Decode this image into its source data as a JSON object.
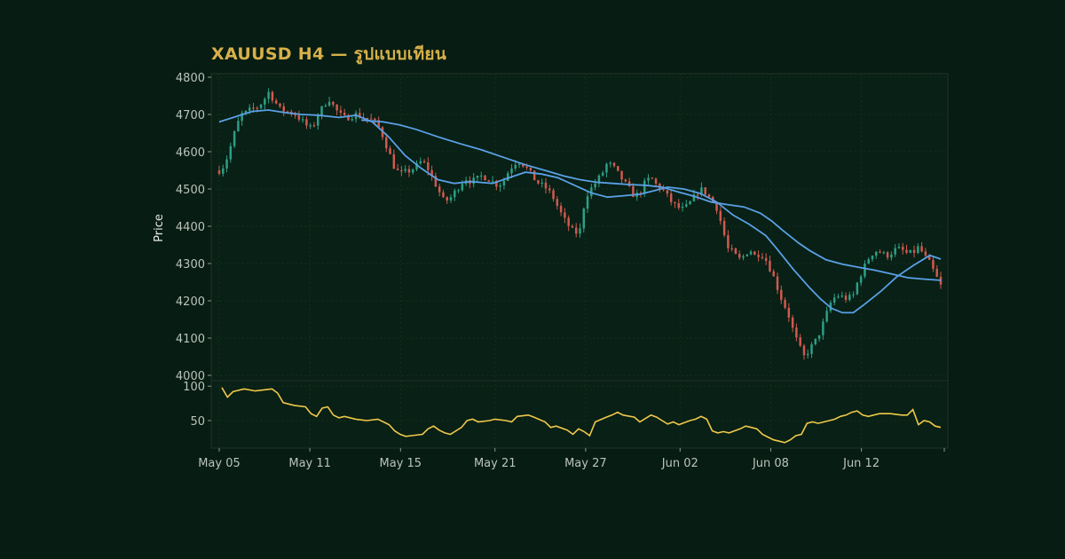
{
  "chart_data": {
    "type": "candlestick",
    "title": "XAUUSD H4 — รูปแบบเทียน",
    "ylabel": "Price",
    "ylim": [
      4000,
      4800
    ],
    "yticks": [
      4000,
      4100,
      4200,
      4300,
      4400,
      4500,
      4600,
      4700,
      4800
    ],
    "xticks": [
      "May 05",
      "May 11",
      "May 15",
      "May 21",
      "May 27",
      "Jun 02",
      "Jun 08",
      "Jun 12"
    ],
    "grid": true,
    "close_path": [
      [
        0,
        4550
      ],
      [
        1,
        4565
      ],
      [
        2,
        4610
      ],
      [
        3,
        4660
      ],
      [
        4,
        4700
      ],
      [
        5,
        4705
      ],
      [
        6,
        4715
      ],
      [
        7,
        4720
      ],
      [
        8,
        4735
      ],
      [
        9,
        4760
      ],
      [
        10,
        4740
      ],
      [
        11,
        4715
      ],
      [
        12,
        4710
      ],
      [
        13,
        4705
      ],
      [
        14,
        4700
      ],
      [
        15,
        4685
      ],
      [
        16,
        4670
      ],
      [
        17,
        4660
      ],
      [
        18,
        4700
      ],
      [
        19,
        4720
      ],
      [
        20,
        4745
      ],
      [
        21,
        4720
      ],
      [
        22,
        4700
      ],
      [
        23,
        4690
      ],
      [
        24,
        4695
      ],
      [
        25,
        4700
      ],
      [
        26,
        4695
      ],
      [
        27,
        4690
      ],
      [
        28,
        4685
      ],
      [
        29,
        4670
      ],
      [
        30,
        4640
      ],
      [
        31,
        4600
      ],
      [
        32,
        4560
      ],
      [
        33,
        4540
      ],
      [
        34,
        4545
      ],
      [
        35,
        4550
      ],
      [
        36,
        4560
      ],
      [
        37,
        4575
      ],
      [
        38,
        4560
      ],
      [
        39,
        4530
      ],
      [
        40,
        4500
      ],
      [
        41,
        4470
      ],
      [
        42,
        4470
      ],
      [
        43,
        4490
      ],
      [
        44,
        4510
      ],
      [
        45,
        4530
      ],
      [
        46,
        4520
      ],
      [
        47,
        4525
      ],
      [
        48,
        4535
      ],
      [
        49,
        4530
      ],
      [
        50,
        4520
      ],
      [
        51,
        4510
      ],
      [
        52,
        4520
      ],
      [
        53,
        4550
      ],
      [
        54,
        4570
      ],
      [
        55,
        4575
      ],
      [
        56,
        4560
      ],
      [
        57,
        4540
      ],
      [
        58,
        4520
      ],
      [
        59,
        4510
      ],
      [
        60,
        4500
      ],
      [
        61,
        4480
      ],
      [
        62,
        4450
      ],
      [
        63,
        4420
      ],
      [
        64,
        4400
      ],
      [
        65,
        4380
      ],
      [
        66,
        4390
      ],
      [
        67,
        4480
      ],
      [
        68,
        4500
      ],
      [
        69,
        4520
      ],
      [
        70,
        4540
      ],
      [
        71,
        4570
      ],
      [
        72,
        4560
      ],
      [
        73,
        4540
      ],
      [
        74,
        4520
      ],
      [
        75,
        4500
      ],
      [
        76,
        4480
      ],
      [
        77,
        4490
      ],
      [
        78,
        4520
      ],
      [
        79,
        4530
      ],
      [
        80,
        4510
      ],
      [
        81,
        4500
      ],
      [
        82,
        4480
      ],
      [
        83,
        4460
      ],
      [
        84,
        4450
      ],
      [
        85,
        4445
      ],
      [
        86,
        4460
      ],
      [
        87,
        4480
      ],
      [
        88,
        4500
      ],
      [
        89,
        4490
      ],
      [
        90,
        4470
      ],
      [
        91,
        4450
      ],
      [
        92,
        4400
      ],
      [
        93,
        4340
      ],
      [
        94,
        4330
      ],
      [
        95,
        4310
      ],
      [
        96,
        4320
      ],
      [
        97,
        4340
      ],
      [
        98,
        4320
      ],
      [
        99,
        4330
      ],
      [
        100,
        4310
      ],
      [
        101,
        4280
      ],
      [
        102,
        4240
      ],
      [
        103,
        4200
      ],
      [
        104,
        4170
      ],
      [
        105,
        4120
      ],
      [
        106,
        4080
      ],
      [
        107,
        4050
      ],
      [
        108,
        4070
      ],
      [
        109,
        4090
      ],
      [
        110,
        4120
      ],
      [
        111,
        4160
      ],
      [
        112,
        4200
      ],
      [
        113,
        4215
      ],
      [
        114,
        4210
      ],
      [
        115,
        4205
      ],
      [
        116,
        4215
      ],
      [
        117,
        4260
      ],
      [
        118,
        4290
      ],
      [
        119,
        4320
      ],
      [
        120,
        4335
      ],
      [
        121,
        4330
      ],
      [
        122,
        4320
      ],
      [
        123,
        4330
      ],
      [
        124,
        4340
      ],
      [
        125,
        4335
      ],
      [
        126,
        4325
      ],
      [
        127,
        4330
      ],
      [
        128,
        4345
      ],
      [
        129,
        4320
      ],
      [
        130,
        4300
      ],
      [
        131,
        4270
      ],
      [
        132,
        4240
      ]
    ],
    "series": [
      {
        "name": "",
        "color": "#5aa0e6",
        "points": [
          [
            0,
            4680
          ],
          [
            6,
            4708
          ],
          [
            9,
            4712
          ],
          [
            12,
            4705
          ],
          [
            15,
            4700
          ],
          [
            18,
            4698
          ],
          [
            22,
            4692
          ],
          [
            25,
            4698
          ],
          [
            28,
            4680
          ],
          [
            31,
            4640
          ],
          [
            34,
            4590
          ],
          [
            37,
            4555
          ],
          [
            40,
            4525
          ],
          [
            43,
            4515
          ],
          [
            46,
            4520
          ],
          [
            50,
            4515
          ],
          [
            53,
            4530
          ],
          [
            56,
            4545
          ],
          [
            59,
            4540
          ],
          [
            62,
            4530
          ],
          [
            65,
            4510
          ],
          [
            68,
            4490
          ],
          [
            71,
            4478
          ],
          [
            74,
            4482
          ],
          [
            77,
            4486
          ],
          [
            80,
            4497
          ],
          [
            82,
            4505
          ],
          [
            85,
            4500
          ],
          [
            88,
            4488
          ],
          [
            91,
            4465
          ],
          [
            94,
            4430
          ],
          [
            97,
            4405
          ],
          [
            100,
            4375
          ],
          [
            102,
            4340
          ],
          [
            105,
            4285
          ],
          [
            108,
            4235
          ],
          [
            110,
            4205
          ],
          [
            112,
            4180
          ],
          [
            114,
            4168
          ],
          [
            116,
            4168
          ],
          [
            118,
            4190
          ],
          [
            121,
            4225
          ],
          [
            124,
            4265
          ],
          [
            127,
            4295
          ],
          [
            130,
            4322
          ],
          [
            132,
            4312
          ]
        ]
      },
      {
        "name": "",
        "color": "#5aa0e6",
        "points": [
          [
            26,
            4685
          ],
          [
            30,
            4680
          ],
          [
            33,
            4672
          ],
          [
            36,
            4660
          ],
          [
            40,
            4640
          ],
          [
            44,
            4622
          ],
          [
            48,
            4605
          ],
          [
            52,
            4585
          ],
          [
            56,
            4565
          ],
          [
            60,
            4548
          ],
          [
            63,
            4535
          ],
          [
            66,
            4525
          ],
          [
            69,
            4518
          ],
          [
            72,
            4515
          ],
          [
            75,
            4512
          ],
          [
            78,
            4510
          ],
          [
            81,
            4505
          ],
          [
            84,
            4492
          ],
          [
            87,
            4480
          ],
          [
            90,
            4465
          ],
          [
            93,
            4458
          ],
          [
            96,
            4452
          ],
          [
            99,
            4435
          ],
          [
            101,
            4415
          ],
          [
            103,
            4390
          ],
          [
            106,
            4355
          ],
          [
            108,
            4335
          ],
          [
            111,
            4310
          ],
          [
            114,
            4298
          ],
          [
            117,
            4290
          ],
          [
            120,
            4282
          ],
          [
            123,
            4272
          ],
          [
            126,
            4262
          ],
          [
            129,
            4258
          ],
          [
            132,
            4255
          ]
        ]
      }
    ],
    "rsi": {
      "yticks": [
        50,
        100
      ],
      "ylim": [
        10,
        108
      ],
      "color": "#f0c84a",
      "points": [
        [
          0,
          98
        ],
        [
          1,
          84
        ],
        [
          2,
          92
        ],
        [
          4,
          96
        ],
        [
          6,
          93
        ],
        [
          8,
          95
        ],
        [
          9,
          96
        ],
        [
          10,
          90
        ],
        [
          11,
          76
        ],
        [
          13,
          72
        ],
        [
          15,
          70
        ],
        [
          16,
          60
        ],
        [
          17,
          56
        ],
        [
          18,
          68
        ],
        [
          19,
          70
        ],
        [
          20,
          58
        ],
        [
          21,
          54
        ],
        [
          22,
          56
        ],
        [
          24,
          52
        ],
        [
          26,
          50
        ],
        [
          28,
          52
        ],
        [
          30,
          44
        ],
        [
          31,
          35
        ],
        [
          32,
          30
        ],
        [
          33,
          27
        ],
        [
          34,
          28
        ],
        [
          36,
          30
        ],
        [
          37,
          38
        ],
        [
          38,
          42
        ],
        [
          39,
          36
        ],
        [
          40,
          32
        ],
        [
          41,
          30
        ],
        [
          43,
          40
        ],
        [
          44,
          50
        ],
        [
          45,
          52
        ],
        [
          46,
          48
        ],
        [
          48,
          50
        ],
        [
          49,
          52
        ],
        [
          51,
          50
        ],
        [
          52,
          48
        ],
        [
          53,
          56
        ],
        [
          55,
          58
        ],
        [
          56,
          55
        ],
        [
          58,
          48
        ],
        [
          59,
          40
        ],
        [
          60,
          42
        ],
        [
          62,
          36
        ],
        [
          63,
          30
        ],
        [
          64,
          38
        ],
        [
          65,
          34
        ],
        [
          66,
          28
        ],
        [
          67,
          48
        ],
        [
          69,
          55
        ],
        [
          70,
          58
        ],
        [
          71,
          62
        ],
        [
          72,
          58
        ],
        [
          74,
          55
        ],
        [
          75,
          48
        ],
        [
          77,
          58
        ],
        [
          78,
          55
        ],
        [
          79,
          50
        ],
        [
          80,
          45
        ],
        [
          81,
          48
        ],
        [
          82,
          44
        ],
        [
          84,
          50
        ],
        [
          85,
          52
        ],
        [
          86,
          56
        ],
        [
          87,
          52
        ],
        [
          88,
          35
        ],
        [
          89,
          32
        ],
        [
          90,
          34
        ],
        [
          91,
          32
        ],
        [
          93,
          38
        ],
        [
          94,
          42
        ],
        [
          95,
          40
        ],
        [
          96,
          38
        ],
        [
          97,
          30
        ],
        [
          98,
          26
        ],
        [
          99,
          22
        ],
        [
          100,
          20
        ],
        [
          101,
          18
        ],
        [
          102,
          22
        ],
        [
          103,
          28
        ],
        [
          104,
          30
        ],
        [
          105,
          46
        ],
        [
          106,
          48
        ],
        [
          107,
          46
        ],
        [
          109,
          50
        ],
        [
          110,
          52
        ],
        [
          111,
          56
        ],
        [
          112,
          58
        ],
        [
          113,
          62
        ],
        [
          114,
          64
        ],
        [
          115,
          58
        ],
        [
          116,
          56
        ],
        [
          118,
          60
        ],
        [
          120,
          60
        ],
        [
          122,
          58
        ],
        [
          123,
          58
        ],
        [
          124,
          66
        ],
        [
          125,
          44
        ],
        [
          126,
          50
        ],
        [
          127,
          48
        ],
        [
          128,
          42
        ],
        [
          129,
          40
        ]
      ]
    },
    "colors": {
      "up": "#2e9e86",
      "down": "#d0594f",
      "rsi": "#f0c84a",
      "ma": "#5aa0e6"
    }
  }
}
